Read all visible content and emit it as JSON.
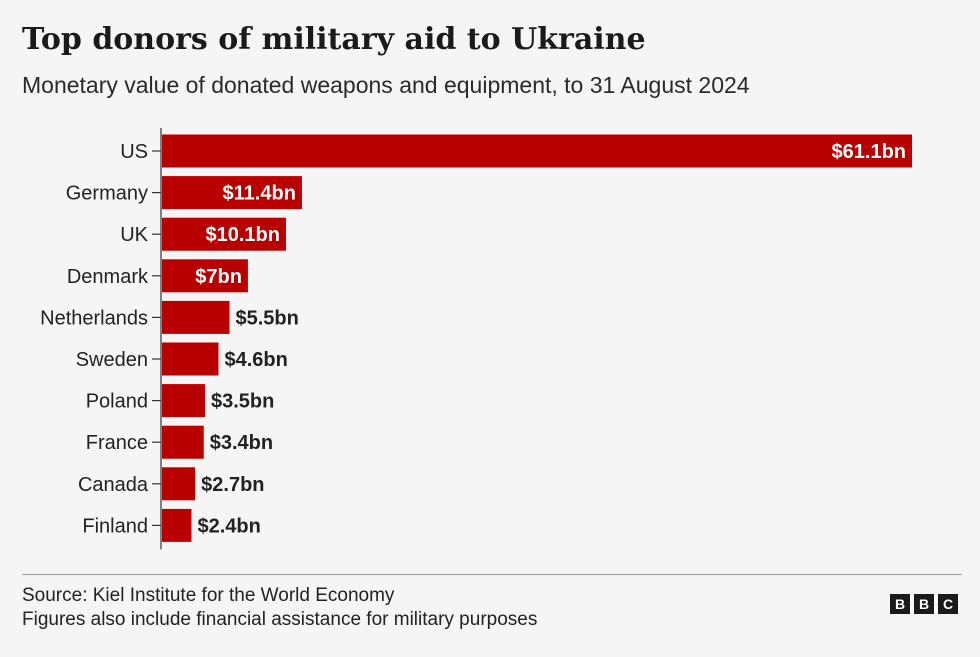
{
  "chart_data": {
    "type": "bar",
    "orientation": "horizontal",
    "title": "Top donors of military aid to Ukraine",
    "subtitle": "Monetary value of donated weapons and equipment, to 31 August 2024",
    "categories": [
      "US",
      "Germany",
      "UK",
      "Denmark",
      "Netherlands",
      "Sweden",
      "Poland",
      "France",
      "Canada",
      "Finland"
    ],
    "values": [
      61.1,
      11.4,
      10.1,
      7,
      5.5,
      4.6,
      3.5,
      3.4,
      2.7,
      2.4
    ],
    "data_labels": [
      "$61.1bn",
      "$11.4bn",
      "$10.1bn",
      "$7bn",
      "$5.5bn",
      "$4.6bn",
      "$3.5bn",
      "$3.4bn",
      "$2.7bn",
      "$2.4bn"
    ],
    "xlim": [
      0,
      61.1
    ],
    "grid": false,
    "legend": "none",
    "bar_color": "#b80000"
  },
  "footer": {
    "source": "Source: Kiel Institute for the World Economy",
    "note": "Figures also include financial assistance for military purposes"
  },
  "logo": {
    "letters": [
      "B",
      "B",
      "C"
    ]
  }
}
